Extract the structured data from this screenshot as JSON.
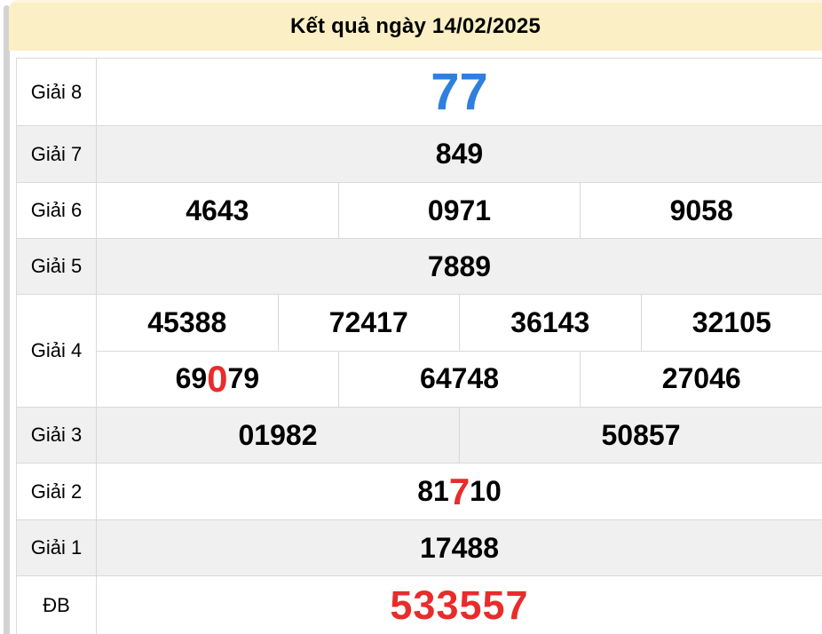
{
  "header": {
    "title": "Kết quả ngày 14/02/2025"
  },
  "colors": {
    "special_blue": "#2e80de",
    "special_red": "#e82c2c",
    "header_background": "#faefc5",
    "shaded_row_background": "#f0f0f1"
  },
  "table": {
    "rows": [
      {
        "label": "Giải 8",
        "value_style": "blue-xl",
        "lines": [
          [
            "77"
          ]
        ]
      },
      {
        "label": "Giải 7",
        "lines": [
          [
            "849"
          ]
        ]
      },
      {
        "label": "Giải 6",
        "lines": [
          [
            "4643",
            "0971",
            "9058"
          ]
        ]
      },
      {
        "label": "Giải 5",
        "lines": [
          [
            "7889"
          ]
        ]
      },
      {
        "label": "Giải 4",
        "lines": [
          [
            "45388",
            "72417",
            "36143",
            "32105"
          ],
          [
            {
              "prefix": "69",
              "red": "0",
              "suffix": "79"
            },
            "64748",
            "27046"
          ]
        ]
      },
      {
        "label": "Giải 3",
        "lines": [
          [
            "01982",
            "50857"
          ]
        ]
      },
      {
        "label": "Giải 2",
        "lines": [
          [
            {
              "prefix": "81",
              "red": "7",
              "suffix": "10"
            }
          ]
        ]
      },
      {
        "label": "Giải 1",
        "lines": [
          [
            "17488"
          ]
        ]
      },
      {
        "label": "ĐB",
        "value_style": "red-lg",
        "lines": [
          [
            "533557"
          ]
        ]
      }
    ]
  }
}
